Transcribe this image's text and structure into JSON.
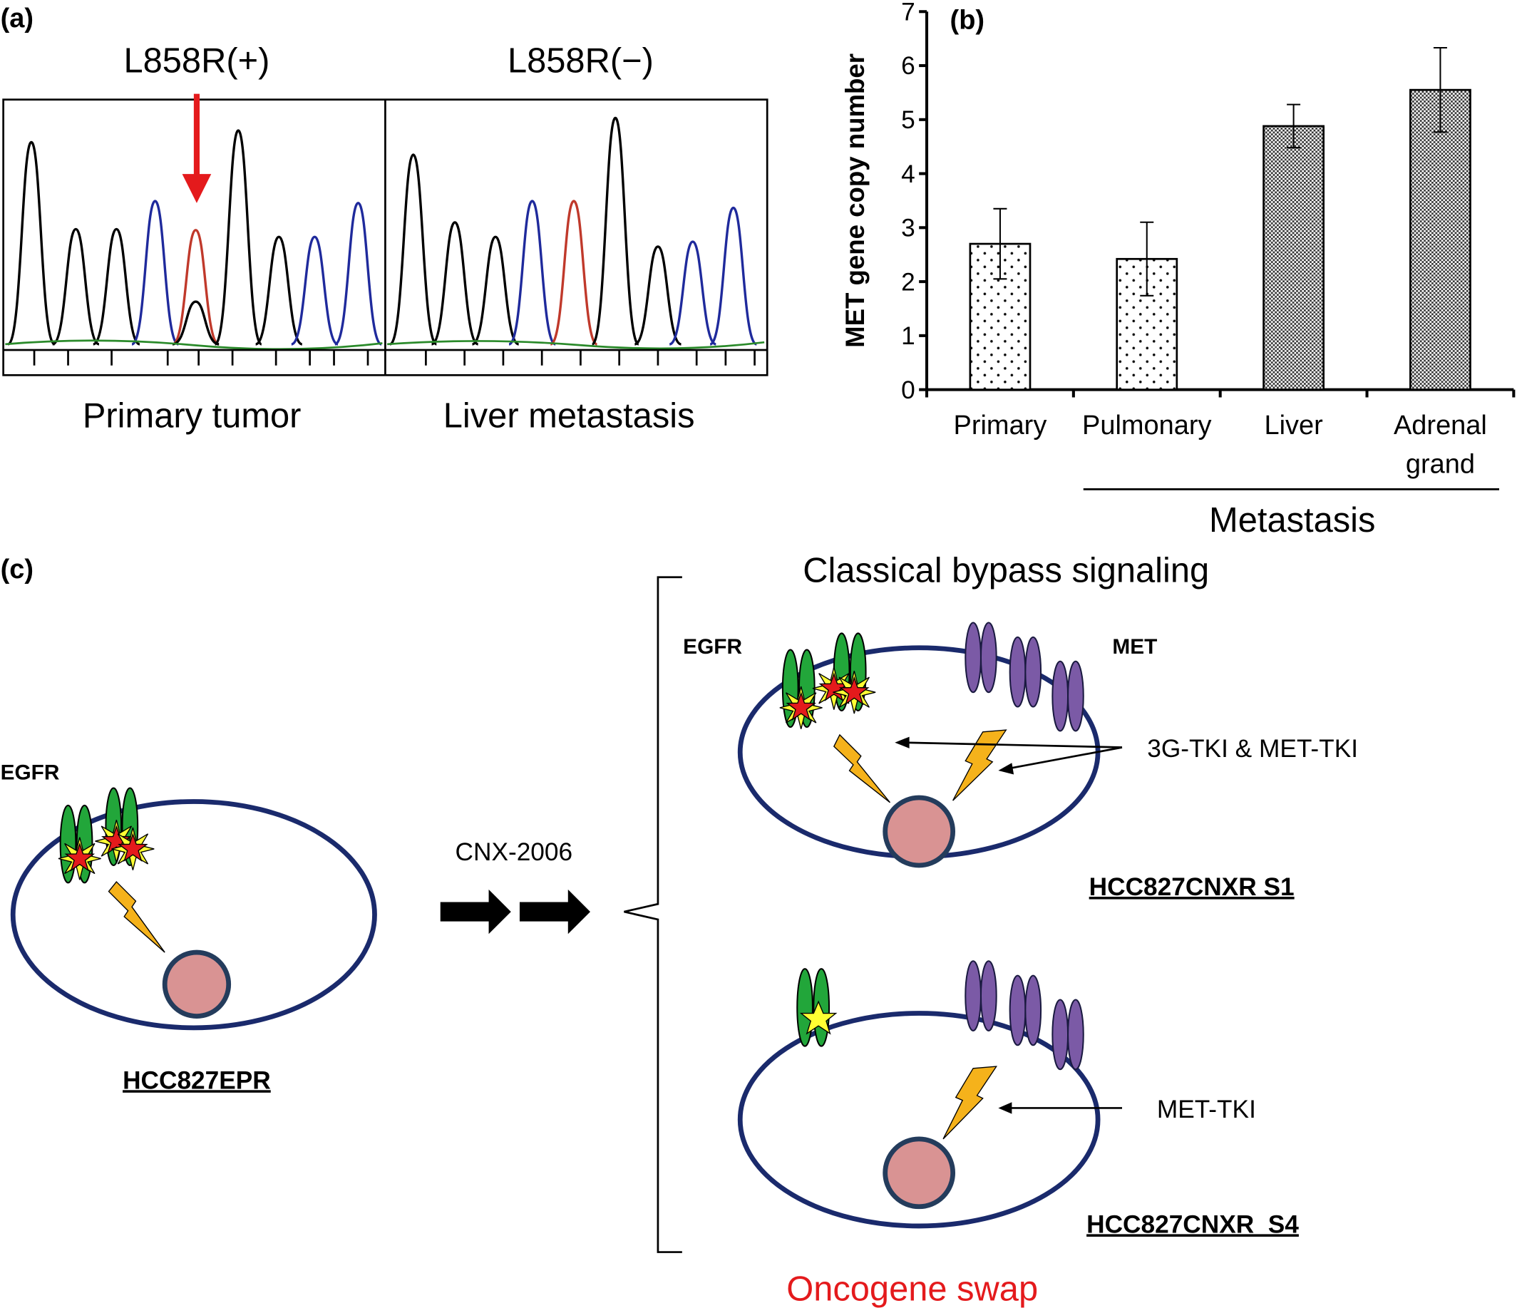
{
  "panel_a": {
    "label": "(a)",
    "left_title": "L858R(+)",
    "right_title": "L858R(−)",
    "left_caption": "Primary tumor",
    "right_caption": "Liver metastasis"
  },
  "chart_data": {
    "type": "bar",
    "panel_label": "(b)",
    "y_label": "MET gene copy number",
    "categories": [
      "Primary",
      "Pulmonary",
      "Liver",
      "Adrenal grand"
    ],
    "values": [
      2.7,
      2.42,
      4.88,
      5.55
    ],
    "errors": [
      0.65,
      0.68,
      0.4,
      0.78
    ],
    "patterns": [
      "dots",
      "dots",
      "checker",
      "checker"
    ],
    "group_label": "Metastasis",
    "ylim": [
      0,
      7
    ],
    "yticks": [
      0,
      1,
      2,
      3,
      4,
      5,
      6,
      7
    ],
    "grid": false
  },
  "panel_c": {
    "label": "(c)",
    "heading": "Classical bypass signaling",
    "left_egfr": "EGFR",
    "top_egfr": "EGFR",
    "top_met": "MET",
    "top_drug": "3G-TKI & MET-TKI",
    "treatment": "CNX-2006",
    "left_cell": "HCC827EPR",
    "top_cell": "HCC827CNXR S1",
    "bottom_drug": "MET-TKI",
    "bottom_cell": "HCC827CNXR  S4",
    "swap": "Oncogene swap"
  }
}
